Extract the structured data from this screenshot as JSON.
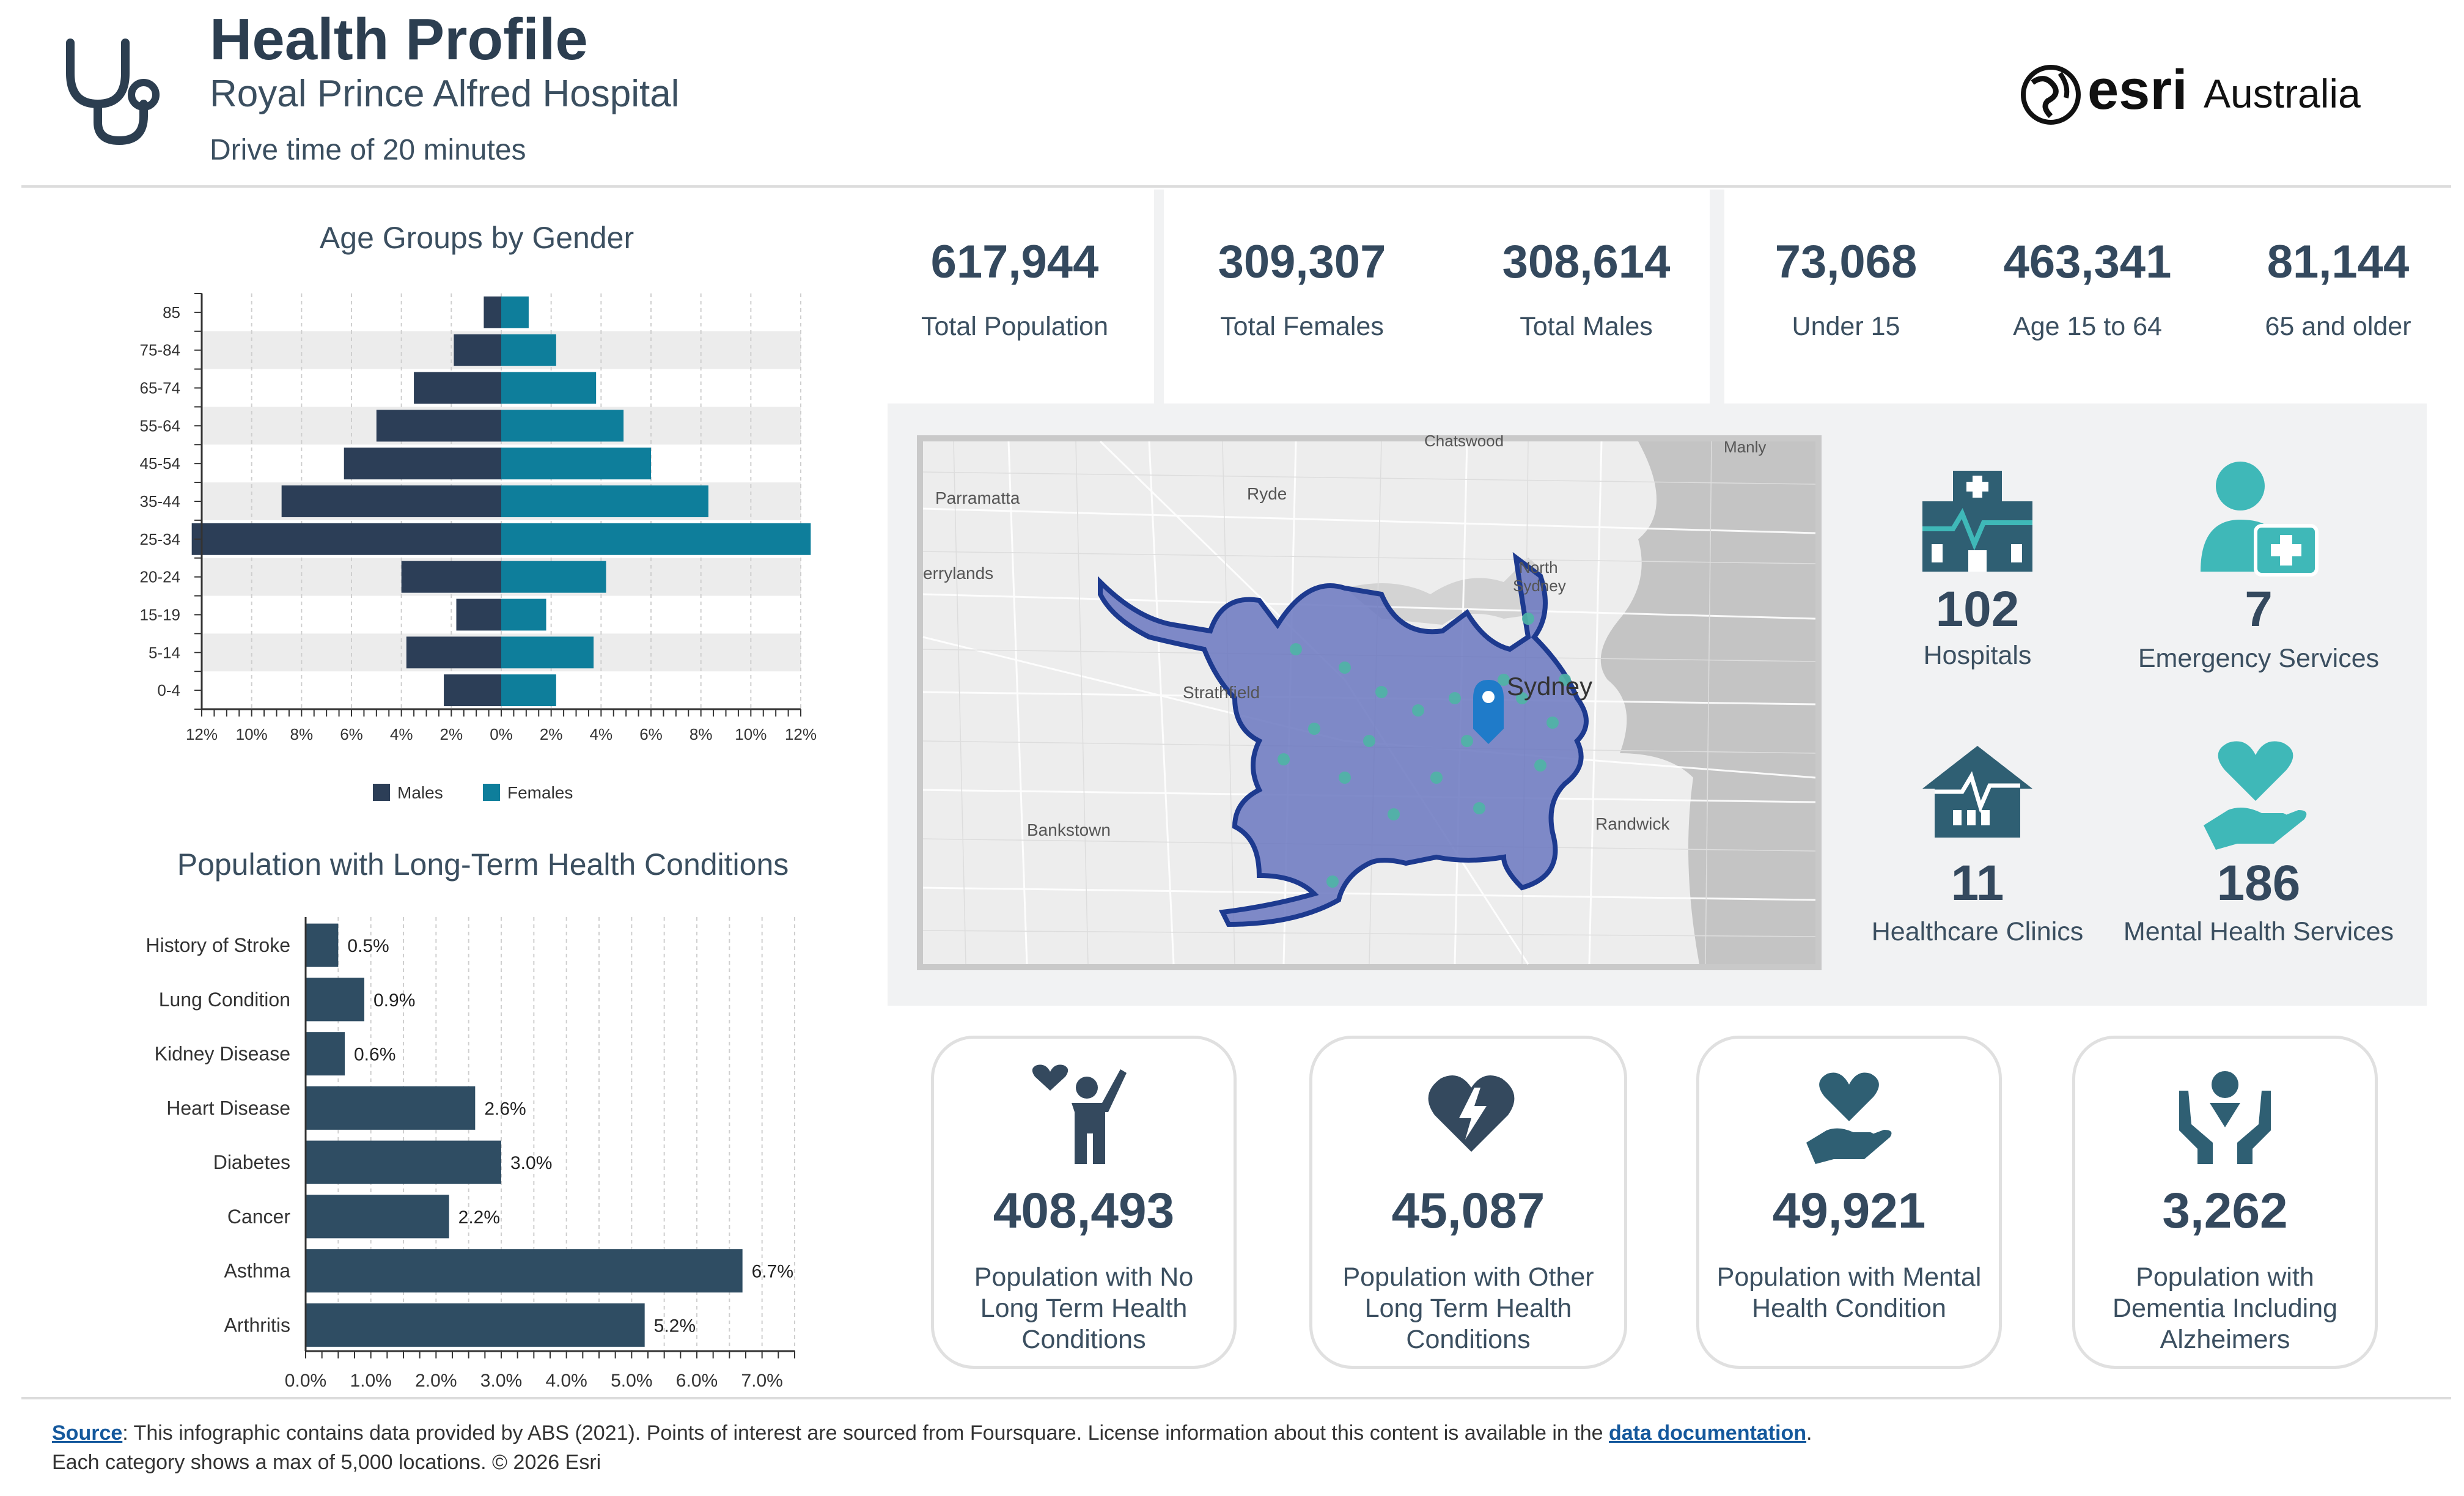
{
  "header": {
    "title": "Health Profile",
    "subtitle": "Royal Prince Alfred Hospital",
    "drive_time": "Drive time of 20 minutes",
    "logo_text": "esri",
    "logo_suffix": "Australia"
  },
  "stats": [
    {
      "value": "617,944",
      "label": "Total Population"
    },
    {
      "value": "309,307",
      "label": "Total Females"
    },
    {
      "value": "308,614",
      "label": "Total Males"
    },
    {
      "value": "73,068",
      "label": "Under 15"
    },
    {
      "value": "463,341",
      "label": "Age 15 to 64"
    },
    {
      "value": "81,144",
      "label": "65 and older"
    }
  ],
  "map_labels": {
    "parramatta": "Parramatta",
    "ryde": "Ryde",
    "chatswood": "Chatswood",
    "manly": "Manly",
    "merrylands": "errylands",
    "north_sydney_1": "North",
    "north_sydney_2": "Sydney",
    "strathfield": "Strathfield",
    "sydney": "Sydney",
    "bankstown": "Bankstown",
    "randwick": "Randwick"
  },
  "poi": [
    {
      "value": "102",
      "label": "Hospitals",
      "icon": "hospital-building-icon"
    },
    {
      "value": "7",
      "label": "Emergency Services",
      "icon": "emergency-person-kit-icon"
    },
    {
      "value": "11",
      "label": "Healthcare Clinics",
      "icon": "clinic-house-icon"
    },
    {
      "value": "186",
      "label": "Mental Health Services",
      "icon": "heart-hand-icon"
    }
  ],
  "cards": [
    {
      "value": "408,493",
      "label_lines": [
        "Population with No",
        "Long Term Health",
        "Conditions"
      ],
      "icon": "healthy-person-heart-icon"
    },
    {
      "value": "45,087",
      "label_lines": [
        "Population with Other",
        "Long Term Health",
        "Conditions"
      ],
      "icon": "heart-lightning-icon"
    },
    {
      "value": "49,921",
      "label_lines": [
        "Population with Mental",
        "Health Condition"
      ],
      "icon": "heart-hand-icon"
    },
    {
      "value": "3,262",
      "label_lines": [
        "Population with",
        "Dementia Including",
        "Alzheimers"
      ],
      "icon": "person-hands-icon"
    }
  ],
  "chart_data": [
    {
      "type": "bar",
      "orientation": "horizontal-pyramid",
      "title": "Age Groups by Gender",
      "categories": [
        "85",
        "75-84",
        "65-74",
        "55-64",
        "45-54",
        "35-44",
        "25-34",
        "20-24",
        "15-19",
        "5-14",
        "0-4"
      ],
      "series": [
        {
          "name": "Males",
          "color": "#2c3e57",
          "values": [
            0.7,
            1.9,
            3.5,
            5.0,
            6.3,
            8.8,
            12.4,
            4.0,
            1.8,
            3.8,
            2.3
          ]
        },
        {
          "name": "Females",
          "color": "#0e7e9b",
          "values": [
            1.1,
            2.2,
            3.8,
            4.9,
            6.0,
            8.3,
            12.4,
            4.2,
            1.8,
            3.7,
            2.2
          ]
        }
      ],
      "xlim": [
        -12,
        12
      ],
      "x_tick_labels": [
        "12%",
        "10%",
        "8%",
        "6%",
        "4%",
        "2%",
        "0%",
        "2%",
        "4%",
        "6%",
        "8%",
        "10%",
        "12%"
      ],
      "legend_placement": "bottom",
      "grid": true
    },
    {
      "type": "bar",
      "orientation": "horizontal",
      "title": "Population with Long-Term Health Conditions",
      "categories": [
        "History of Stroke",
        "Lung Condition",
        "Kidney Disease",
        "Heart Disease",
        "Diabetes",
        "Cancer",
        "Asthma",
        "Arthritis"
      ],
      "values": [
        0.5,
        0.9,
        0.6,
        2.6,
        3.0,
        2.2,
        6.7,
        5.2
      ],
      "value_labels": [
        "0.5%",
        "0.9%",
        "0.6%",
        "2.6%",
        "3.0%",
        "2.2%",
        "6.7%",
        "5.2%"
      ],
      "color": "#2f4d63",
      "xlim": [
        0,
        7.5
      ],
      "x_tick_labels": [
        "0.0%",
        "1.0%",
        "2.0%",
        "3.0%",
        "4.0%",
        "5.0%",
        "6.0%",
        "7.0%"
      ],
      "grid": true
    }
  ],
  "footer": {
    "source_link": "Source",
    "text1": ": This infographic contains data provided by ABS (2021). Points of interest are sourced from Foursquare. License information about this content is available in the ",
    "doc_link": "data documentation",
    "text1_end": ".",
    "line2": "Each category shows a max of 5,000 locations. © 2026 Esri"
  },
  "colors": {
    "dark": "#2c3e50",
    "teal": "#0e7e9b",
    "icon_teal": "#3fb8b8",
    "icon_slate": "#2f5f73",
    "map_polygon": "#6a77c0"
  }
}
